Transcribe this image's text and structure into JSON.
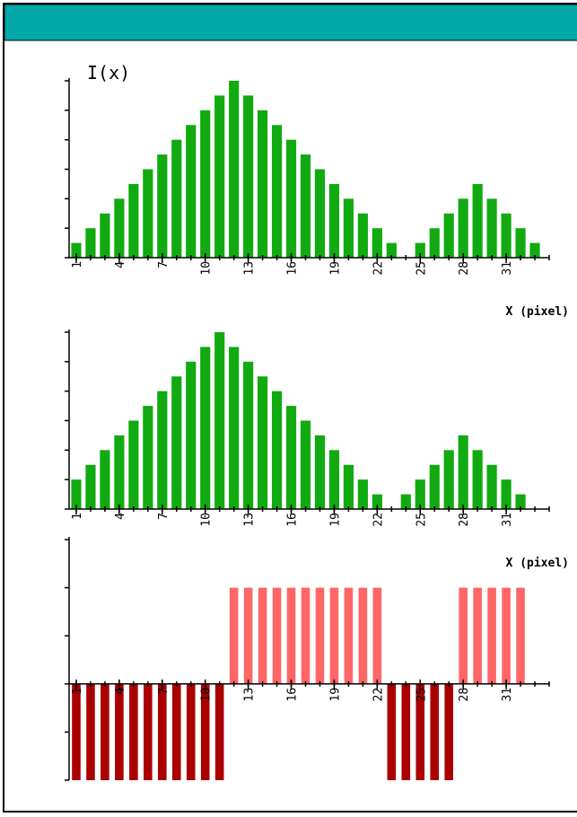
{
  "chart_data": [
    {
      "type": "bar",
      "y_label": "I(x)",
      "x_label": "X (pixel)",
      "x": [
        1,
        2,
        3,
        4,
        5,
        6,
        7,
        8,
        9,
        10,
        11,
        12,
        13,
        14,
        15,
        16,
        17,
        18,
        19,
        20,
        21,
        22,
        23,
        24,
        25,
        26,
        27,
        28,
        29,
        30,
        31,
        32,
        33
      ],
      "values": [
        0.5,
        1,
        1.5,
        2,
        2.5,
        3,
        3.5,
        4,
        4.5,
        5,
        5.5,
        6,
        5.5,
        5,
        4.5,
        4,
        3.5,
        3,
        2.5,
        2,
        1.5,
        1,
        0.5,
        0,
        0.5,
        1,
        1.5,
        2,
        2.5,
        2,
        1.5,
        1,
        0.5
      ],
      "color": "#11aa11",
      "xlim": [
        0.5,
        34
      ],
      "xticks": [
        1,
        4,
        7,
        10,
        13,
        16,
        19,
        22,
        25,
        28,
        31
      ],
      "minor_xticks": [
        1,
        2,
        3,
        4,
        5,
        6,
        7,
        8,
        9,
        10,
        11,
        12,
        13,
        14,
        15,
        16,
        17,
        18,
        19,
        20,
        21,
        22,
        23,
        24,
        25,
        26,
        27,
        28,
        29,
        30,
        31,
        32,
        33,
        34
      ],
      "ylim": [
        0,
        6
      ],
      "yticks": [
        0,
        1,
        2,
        3,
        4,
        5,
        6
      ]
    },
    {
      "type": "bar",
      "x_label": "X (pixel)",
      "x": [
        1,
        2,
        3,
        4,
        5,
        6,
        7,
        8,
        9,
        10,
        11,
        12,
        13,
        14,
        15,
        16,
        17,
        18,
        19,
        20,
        21,
        22,
        23,
        24,
        25,
        26,
        27,
        28,
        29,
        30,
        31,
        32,
        33
      ],
      "values": [
        1,
        1.5,
        2,
        2.5,
        3,
        3.5,
        4,
        4.5,
        5,
        5.5,
        6,
        5.5,
        5,
        4.5,
        4,
        3.5,
        3,
        2.5,
        2,
        1.5,
        1,
        0.5,
        0,
        0.5,
        1,
        1.5,
        2,
        2.5,
        2,
        1.5,
        1,
        0.5,
        0
      ],
      "color": "#11aa11",
      "xlim": [
        0.5,
        34
      ],
      "xticks": [
        1,
        4,
        7,
        10,
        13,
        16,
        19,
        22,
        25,
        28,
        31
      ],
      "minor_xticks": [
        1,
        2,
        3,
        4,
        5,
        6,
        7,
        8,
        9,
        10,
        11,
        12,
        13,
        14,
        15,
        16,
        17,
        18,
        19,
        20,
        21,
        22,
        23,
        24,
        25,
        26,
        27,
        28,
        29,
        30,
        31,
        32,
        33,
        34
      ],
      "ylim": [
        0,
        6
      ],
      "yticks": [
        0,
        1,
        2,
        3,
        4,
        5,
        6
      ]
    },
    {
      "type": "signbar",
      "x": [
        1,
        2,
        3,
        4,
        5,
        6,
        7,
        8,
        9,
        10,
        11,
        12,
        13,
        14,
        15,
        16,
        17,
        18,
        19,
        20,
        21,
        22,
        23,
        24,
        25,
        26,
        27,
        28,
        29,
        30,
        31,
        32
      ],
      "values": [
        -2,
        -2,
        -2,
        -2,
        -2,
        -2,
        -2,
        -2,
        -2,
        -2,
        -2,
        2,
        2,
        2,
        2,
        2,
        2,
        2,
        2,
        2,
        2,
        2,
        -2,
        -2,
        -2,
        -2,
        -2,
        2,
        2,
        2,
        2,
        2
      ],
      "positive_color": "#ff6666",
      "negative_color": "#aa0000",
      "xlim": [
        0.5,
        34
      ],
      "xticks": [
        1,
        4,
        7,
        10,
        13,
        16,
        19,
        22,
        25,
        28,
        31
      ],
      "minor_xticks": [
        1,
        2,
        3,
        4,
        5,
        6,
        7,
        8,
        9,
        10,
        11,
        12,
        13,
        14,
        15,
        16,
        17,
        18,
        19,
        20,
        21,
        22,
        23,
        24,
        25,
        26,
        27,
        28,
        29,
        30,
        31,
        32,
        33,
        34
      ],
      "ylim": [
        -2,
        3
      ],
      "yticks": [
        -2,
        -1,
        0,
        1,
        2,
        3
      ]
    }
  ]
}
